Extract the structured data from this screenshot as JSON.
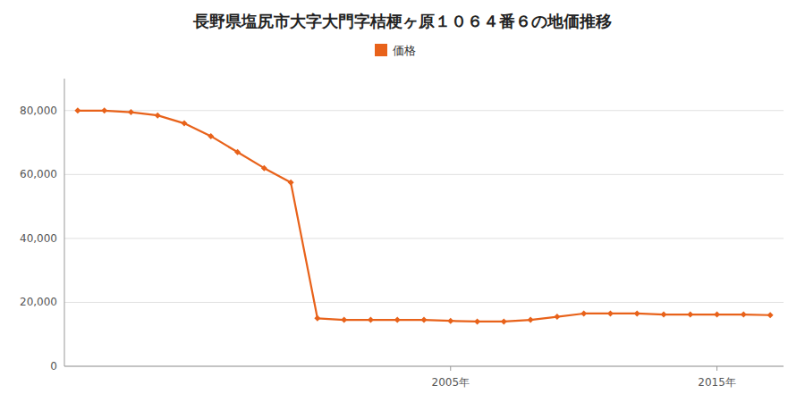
{
  "chart_data": {
    "type": "line",
    "title": "長野県塩尻市大字大門字桔梗ヶ原１０６４番６の地価推移",
    "x": [
      1991,
      1992,
      1993,
      1994,
      1995,
      1996,
      1997,
      1998,
      1999,
      2000,
      2001,
      2002,
      2003,
      2004,
      2005,
      2006,
      2007,
      2008,
      2009,
      2010,
      2011,
      2012,
      2013,
      2014,
      2015,
      2016,
      2017
    ],
    "series": [
      {
        "name": "価格",
        "color": "#E8621A",
        "marker": "diamond",
        "values": [
          80000,
          80000,
          79500,
          78500,
          76000,
          72000,
          67000,
          62000,
          57500,
          15000,
          14500,
          14500,
          14500,
          14500,
          14200,
          14000,
          14000,
          14500,
          15500,
          16500,
          16500,
          16500,
          16200,
          16200,
          16200,
          16200,
          16000
        ]
      }
    ],
    "xlim": [
      1990.5,
      2017.5
    ],
    "xticks": [
      {
        "value": 2005,
        "label": "2005年"
      },
      {
        "value": 2015,
        "label": "2015年"
      }
    ],
    "ylim": [
      0,
      90000
    ],
    "yticks": [
      0,
      {
        "value": 20000,
        "label": "20,000"
      },
      {
        "value": 40000,
        "label": "40,000"
      },
      {
        "value": 60000,
        "label": "60,000"
      },
      {
        "value": 80000,
        "label": "80,000"
      }
    ],
    "grid": true,
    "legend": "top"
  }
}
